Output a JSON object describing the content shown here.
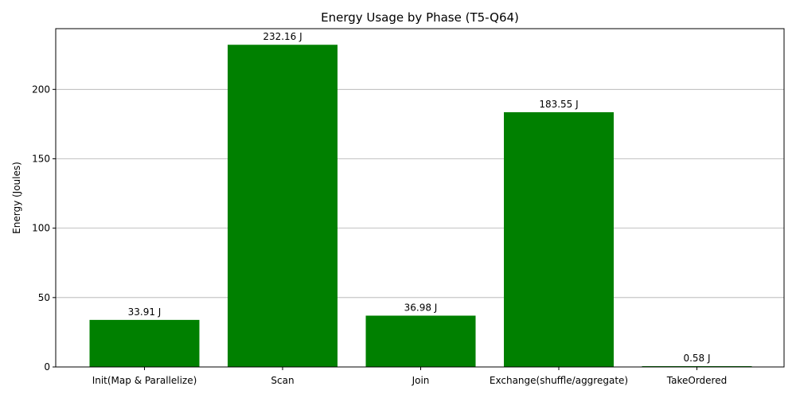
{
  "chart_data": {
    "type": "bar",
    "title": "Energy Usage by Phase (T5-Q64)",
    "xlabel": "",
    "ylabel": "Energy (Joules)",
    "categories": [
      "Init(Map & Parallelize)",
      "Scan",
      "Join",
      "Exchange(shuffle/aggregate)",
      "TakeOrdered"
    ],
    "values": [
      33.91,
      232.16,
      36.98,
      183.55,
      0.58
    ],
    "data_labels": [
      "33.91 J",
      "232.16 J",
      "36.98 J",
      "183.55 J",
      "0.58 J"
    ],
    "ylim": [
      0,
      243.77
    ],
    "yticks": [
      0,
      50,
      100,
      150,
      200
    ],
    "grid": "y-axis major",
    "bar_color": "#008000",
    "grid_color": "#b0b0b0"
  }
}
